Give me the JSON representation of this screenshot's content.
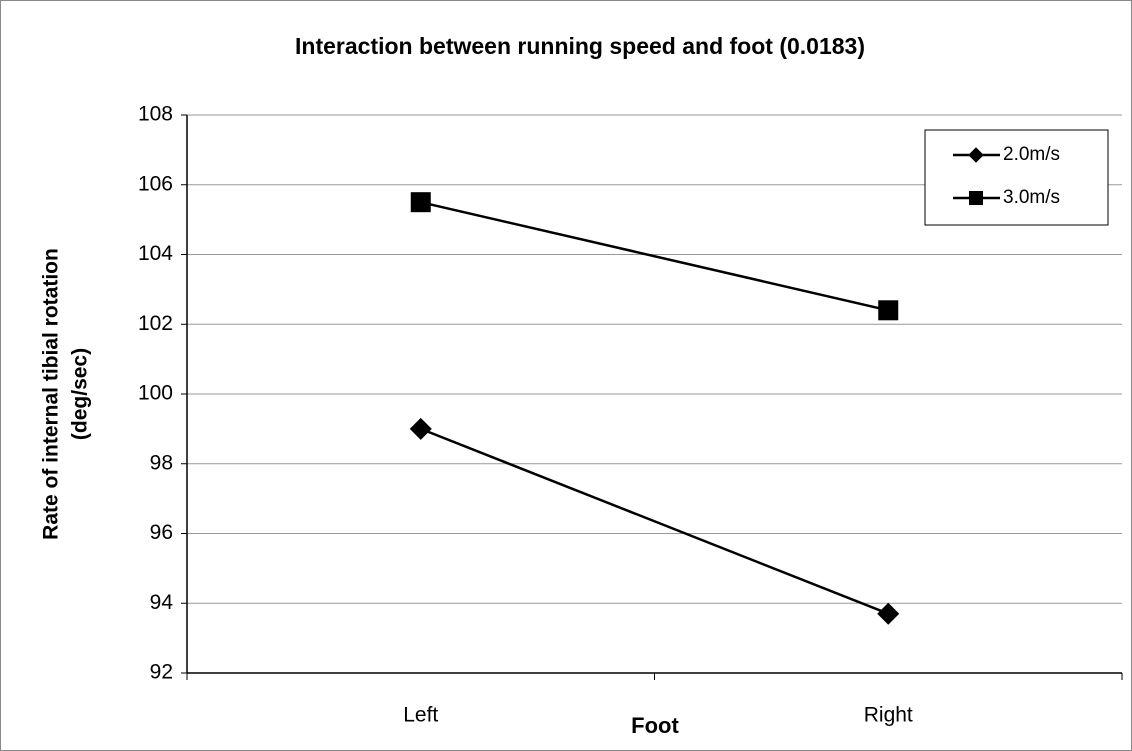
{
  "chart_data": {
    "type": "line",
    "title": "Interaction between running speed and foot (0.0183)",
    "x_label": "Foot",
    "y_label": [
      "Rate of internal tibial rotation",
      "(deg/sec)"
    ],
    "categories": [
      "Left",
      "Right"
    ],
    "series": [
      {
        "name": "2.0m/s",
        "color": "#000000",
        "marker": "diamond",
        "values": [
          99.0,
          93.7
        ]
      },
      {
        "name": "3.0m/s",
        "color": "#000000",
        "marker": "square",
        "values": [
          105.5,
          102.4
        ]
      }
    ],
    "ylim": [
      92,
      108
    ],
    "yticks": [
      92,
      94,
      96,
      98,
      100,
      102,
      104,
      106,
      108
    ],
    "grid": true,
    "legend": "top-right"
  }
}
